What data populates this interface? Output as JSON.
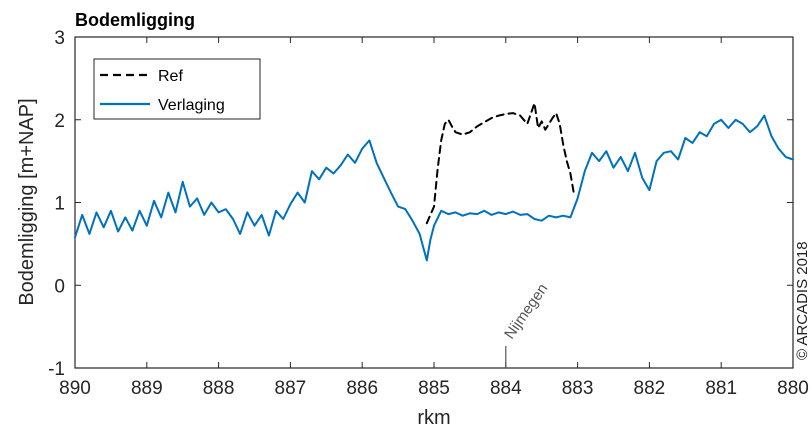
{
  "chart_data": {
    "type": "line",
    "title": "Bodemligging",
    "xlabel": "rkm",
    "ylabel": "Bodemligging [m+NAP]",
    "xlim": [
      890,
      880
    ],
    "ylim": [
      -1,
      3
    ],
    "x_reversed": true,
    "xticks": [
      "890",
      "889",
      "888",
      "887",
      "886",
      "885",
      "884",
      "883",
      "882",
      "881",
      "880"
    ],
    "yticks": [
      "-1",
      "0",
      "1",
      "2",
      "3"
    ],
    "grid": false,
    "legend_position": "top-left",
    "series": [
      {
        "name": "Ref",
        "style": "dashed",
        "color": "#000000",
        "x": [
          885.1,
          885.0,
          884.95,
          884.9,
          884.85,
          884.8,
          884.75,
          884.7,
          884.6,
          884.5,
          884.4,
          884.3,
          884.2,
          884.1,
          884.0,
          883.9,
          883.8,
          883.7,
          883.6,
          883.55,
          883.5,
          883.45,
          883.4,
          883.35,
          883.3,
          883.25,
          883.2,
          883.15,
          883.1,
          883.05
        ],
        "y": [
          0.75,
          0.95,
          1.4,
          1.75,
          1.95,
          2.0,
          1.92,
          1.85,
          1.82,
          1.85,
          1.92,
          1.97,
          2.02,
          2.05,
          2.07,
          2.08,
          2.05,
          1.95,
          2.2,
          1.9,
          1.98,
          1.88,
          1.95,
          2.02,
          2.08,
          1.95,
          1.7,
          1.5,
          1.35,
          1.1
        ]
      },
      {
        "name": "Verlaging",
        "style": "solid",
        "color": "#0072BD",
        "x": [
          890.0,
          889.9,
          889.8,
          889.7,
          889.6,
          889.5,
          889.4,
          889.3,
          889.2,
          889.1,
          889.0,
          888.9,
          888.8,
          888.7,
          888.6,
          888.5,
          888.4,
          888.3,
          888.2,
          888.1,
          888.0,
          887.9,
          887.8,
          887.7,
          887.6,
          887.5,
          887.4,
          887.3,
          887.2,
          887.1,
          887.0,
          886.9,
          886.8,
          886.7,
          886.6,
          886.5,
          886.4,
          886.3,
          886.2,
          886.1,
          886.0,
          885.9,
          885.8,
          885.7,
          885.6,
          885.5,
          885.4,
          885.3,
          885.2,
          885.1,
          885.05,
          885.0,
          884.9,
          884.8,
          884.7,
          884.6,
          884.5,
          884.4,
          884.3,
          884.2,
          884.1,
          884.0,
          883.9,
          883.8,
          883.7,
          883.6,
          883.5,
          883.4,
          883.3,
          883.2,
          883.1,
          883.0,
          882.9,
          882.8,
          882.7,
          882.6,
          882.5,
          882.4,
          882.3,
          882.2,
          882.1,
          882.0,
          881.9,
          881.8,
          881.7,
          881.6,
          881.5,
          881.4,
          881.3,
          881.2,
          881.1,
          881.0,
          880.9,
          880.8,
          880.7,
          880.6,
          880.5,
          880.4,
          880.3,
          880.2,
          880.1,
          880.0
        ],
        "y": [
          0.58,
          0.85,
          0.62,
          0.88,
          0.7,
          0.9,
          0.65,
          0.82,
          0.66,
          0.9,
          0.72,
          1.02,
          0.82,
          1.12,
          0.88,
          1.25,
          0.95,
          1.05,
          0.85,
          1.0,
          0.88,
          0.92,
          0.8,
          0.62,
          0.88,
          0.72,
          0.85,
          0.6,
          0.9,
          0.8,
          0.98,
          1.12,
          1.0,
          1.38,
          1.28,
          1.42,
          1.35,
          1.45,
          1.58,
          1.48,
          1.65,
          1.75,
          1.48,
          1.3,
          1.12,
          0.95,
          0.92,
          0.78,
          0.62,
          0.3,
          0.55,
          0.72,
          0.9,
          0.86,
          0.88,
          0.84,
          0.87,
          0.86,
          0.9,
          0.85,
          0.88,
          0.86,
          0.89,
          0.85,
          0.86,
          0.8,
          0.78,
          0.84,
          0.82,
          0.84,
          0.82,
          1.05,
          1.38,
          1.6,
          1.5,
          1.62,
          1.42,
          1.55,
          1.38,
          1.6,
          1.3,
          1.15,
          1.5,
          1.6,
          1.62,
          1.52,
          1.78,
          1.72,
          1.85,
          1.8,
          1.95,
          2.0,
          1.9,
          2.0,
          1.95,
          1.85,
          1.92,
          2.05,
          1.8,
          1.65,
          1.55,
          1.52
        ]
      }
    ],
    "annotations": [
      {
        "text": "Nijmegen",
        "x": 884,
        "rotation": -55
      }
    ],
    "copyright": "© ARCADIS 2018"
  }
}
